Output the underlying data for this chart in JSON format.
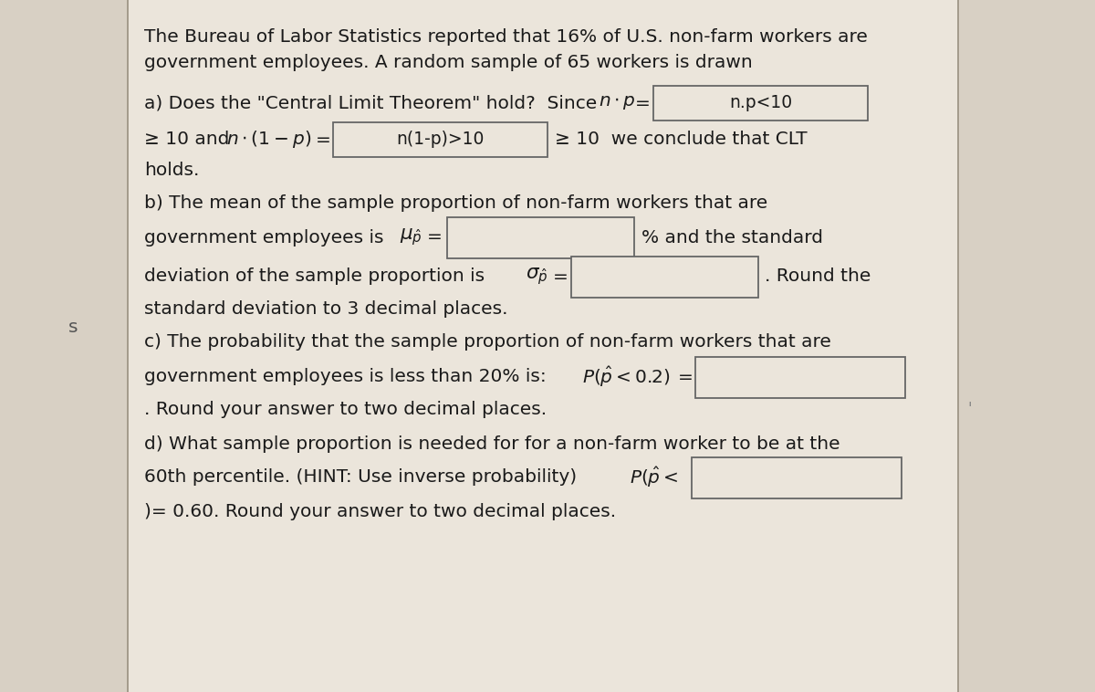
{
  "bg_color": "#d8d0c4",
  "left_panel_color": "#d8d0c4",
  "right_panel_color": "#ebe5db",
  "text_color": "#1a1a1a",
  "box_border_color": "#666666",
  "box_fill_color": "#ebe5db",
  "title_line1": "The Bureau of Labor Statistics reported that 16% of U.S. non-farm workers are",
  "title_line2": "government employees. A random sample of 65 workers is drawn",
  "part_a_box1_text": "n.p<10",
  "part_a_box2_text": "n(1-p)>10",
  "font_size": 14.5,
  "font_size_box": 13.5
}
